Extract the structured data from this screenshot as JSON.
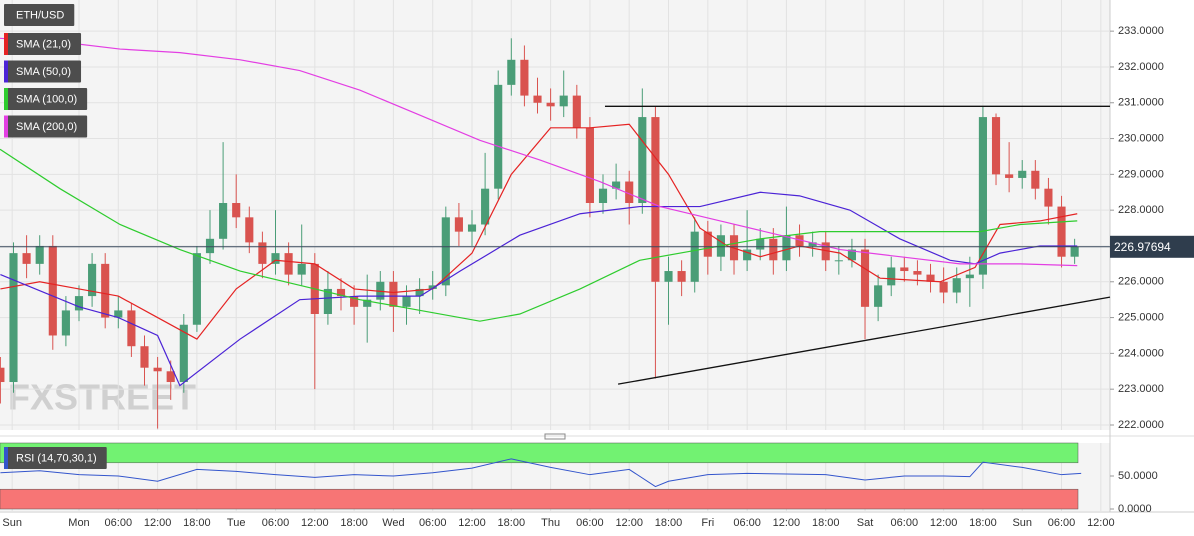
{
  "chart_data": [
    {
      "type": "candlestick",
      "title": "ETH/USD",
      "watermark": "FXSTREET",
      "up_color": "#4a9d77",
      "down_color": "#d9534f",
      "x": [
        -12,
        -10,
        -8,
        -6,
        -4,
        -2,
        0,
        2,
        4,
        6,
        8,
        10,
        12,
        14,
        16,
        18,
        20,
        22,
        24,
        26,
        28,
        30,
        32,
        34,
        36,
        38,
        40,
        42,
        44,
        46,
        48,
        50,
        52,
        54,
        56,
        58,
        60,
        62,
        64,
        66,
        68,
        70,
        72,
        74,
        76,
        78,
        80,
        82,
        84,
        86,
        88,
        90,
        92,
        94,
        96,
        98,
        100,
        102,
        104,
        106,
        108,
        110,
        112,
        114,
        116,
        118,
        120,
        122,
        124,
        126,
        128,
        130,
        132,
        134,
        136,
        138,
        140,
        142,
        144,
        146,
        148,
        150,
        152
      ],
      "open": [
        223.6,
        223.2,
        226.8,
        226.5,
        227,
        224.5,
        225.2,
        225.6,
        226.5,
        225,
        225.2,
        224.2,
        223.6,
        223.5,
        223.2,
        224.8,
        226.8,
        227.2,
        228.2,
        227.8,
        227.1,
        226.5,
        226.8,
        226.2,
        226.5,
        225.1,
        225.8,
        225.6,
        225.3,
        225.5,
        226,
        225.3,
        225.6,
        225.8,
        225.9,
        227.8,
        227.4,
        227.6,
        228.6,
        231.5,
        232.2,
        231.2,
        231,
        230.9,
        231.2,
        230.3,
        228.2,
        228.6,
        228.8,
        228.2,
        230.6,
        226,
        226.3,
        226,
        227.4,
        226.7,
        227.3,
        226.6,
        226.9,
        227.2,
        226.6,
        227.3,
        227,
        227.1,
        226.6,
        226.6,
        226.9,
        225.3,
        225.9,
        226.4,
        226.3,
        226.2,
        226,
        225.7,
        226.1,
        226.2,
        230.6,
        229,
        228.9,
        229.1,
        228.6,
        228.1,
        226.7
      ],
      "high": [
        223.9,
        227.1,
        227.3,
        227.3,
        227.3,
        225.6,
        225.9,
        226.8,
        226.8,
        225.6,
        225.4,
        224.5,
        223.9,
        223.8,
        225.1,
        227,
        228,
        229.9,
        229,
        228.1,
        227.4,
        228,
        227.1,
        227.6,
        226.8,
        226.3,
        226.1,
        225.9,
        226.2,
        226.3,
        226.3,
        225.9,
        226.1,
        226.3,
        228.1,
        228.2,
        228,
        229.6,
        231.9,
        232.8,
        232.6,
        231.7,
        231.4,
        231.9,
        231.5,
        230.6,
        229,
        229.3,
        229.1,
        231.4,
        230.9,
        226.7,
        226.6,
        227.8,
        227.7,
        227.6,
        227.6,
        228,
        227.5,
        227.5,
        228.1,
        227.6,
        227.4,
        227.4,
        227,
        227.2,
        227.2,
        226.2,
        226.7,
        226.7,
        226.6,
        226.5,
        226.4,
        226.4,
        226.7,
        230.9,
        230.7,
        229.9,
        229.4,
        229.4,
        228.9,
        228.4,
        227.2
      ],
      "low": [
        222.6,
        222.9,
        226.1,
        226.2,
        224.1,
        224.2,
        224.9,
        225.3,
        224.7,
        224.7,
        223.9,
        223.1,
        221.9,
        222.7,
        222.9,
        224.6,
        226.5,
        226.9,
        227.5,
        226.8,
        226.1,
        226.2,
        225.9,
        225.9,
        223,
        224.8,
        225.2,
        224.8,
        224.3,
        225.2,
        224.6,
        224.8,
        225.1,
        225.5,
        225.6,
        227,
        227,
        227.3,
        228.3,
        231.2,
        230.9,
        230.7,
        230.5,
        230.6,
        230,
        227.8,
        227.9,
        228.3,
        227.6,
        227.9,
        223.3,
        224.8,
        225.6,
        225.7,
        226.2,
        226.3,
        226.2,
        226.3,
        226.6,
        226.2,
        226.3,
        226.7,
        226.7,
        226.3,
        226.2,
        226.4,
        224.4,
        224.9,
        225.6,
        226,
        225.9,
        225.7,
        225.4,
        225.4,
        225.3,
        225.8,
        228.7,
        228.5,
        228.6,
        228.3,
        227.6,
        226.4,
        226.5
      ],
      "close": [
        223.2,
        226.8,
        226.5,
        227,
        224.5,
        225.2,
        225.6,
        226.5,
        225,
        225.2,
        224.2,
        223.6,
        223.5,
        223.2,
        224.8,
        226.8,
        227.2,
        228.2,
        227.8,
        227.1,
        226.5,
        226.8,
        226.2,
        226.5,
        225.1,
        225.8,
        225.6,
        225.3,
        225.5,
        226,
        225.3,
        225.6,
        225.8,
        225.9,
        227.8,
        227.4,
        227.6,
        228.6,
        231.5,
        232.2,
        231.2,
        231,
        230.9,
        231.2,
        230.3,
        228.2,
        228.6,
        228.8,
        228.2,
        230.6,
        226,
        226.3,
        226,
        227.4,
        226.7,
        227.3,
        226.6,
        226.9,
        227.2,
        226.6,
        227.3,
        227,
        227.1,
        226.6,
        226.6,
        226.9,
        225.3,
        225.9,
        226.4,
        226.3,
        226.2,
        226,
        225.7,
        226.1,
        226.2,
        230.6,
        229,
        228.9,
        229.1,
        228.6,
        228.1,
        226.7,
        226.98
      ],
      "series": [
        {
          "name": "SMA (21,0)",
          "color": "#e52323",
          "x": [
            -12,
            -6,
            0,
            6,
            12,
            18,
            24,
            30,
            36,
            42,
            48,
            54,
            60,
            66,
            72,
            78,
            84,
            90,
            94.8,
            99,
            104,
            110,
            116.2,
            122.3,
            131.5,
            136.8,
            140.6,
            146.7,
            152.4
          ],
          "values": [
            225.8,
            226,
            225.8,
            225.6,
            225,
            224.4,
            225.8,
            226.6,
            226.5,
            225.8,
            225.7,
            225.8,
            226.8,
            229,
            230.3,
            230.3,
            230.4,
            229,
            227.5,
            227,
            226.7,
            227,
            226.8,
            226.1,
            226,
            226.4,
            227.6,
            227.7,
            227.9
          ]
        },
        {
          "name": "SMA (50,0)",
          "color": "#4b23d6",
          "x": [
            -12,
            0,
            6,
            12,
            15.4,
            24.6,
            33.7,
            42.9,
            52.1,
            58.2,
            67.3,
            76.5,
            85.6,
            94.8,
            104,
            110,
            117.7,
            125.3,
            133,
            136.8,
            140.6,
            146.7,
            152.4
          ],
          "values": [
            226.2,
            225.3,
            225,
            224.5,
            223.1,
            224.4,
            225.5,
            225.6,
            225.6,
            226.3,
            227.3,
            227.9,
            228.1,
            228.1,
            228.5,
            228.4,
            228,
            227.2,
            226.6,
            226.5,
            226.8,
            227,
            227
          ]
        },
        {
          "name": "SMA (100,0)",
          "color": "#2ecc2e",
          "x": [
            -12.06,
            -2.9,
            6.26,
            15.4,
            24.6,
            33.7,
            42.9,
            52.1,
            61.2,
            67.3,
            76.5,
            85.6,
            94.8,
            104,
            113.1,
            122.3,
            131.5,
            137.6,
            143.7,
            152.4
          ],
          "values": [
            229.7,
            228.6,
            227.6,
            226.9,
            226.3,
            225.9,
            225.5,
            225.2,
            224.9,
            225.1,
            225.8,
            226.6,
            226.9,
            227.2,
            227.4,
            227.4,
            227.4,
            227.4,
            227.6,
            227.7
          ]
        },
        {
          "name": "SMA (200,0)",
          "color": "#e33ee3",
          "x": [
            -12.06,
            -2.9,
            6.26,
            15.4,
            24.6,
            33.7,
            42.9,
            52.1,
            61.2,
            70.4,
            79.5,
            88.7,
            97.9,
            107,
            116.2,
            125.3,
            134.5,
            143.7,
            152.4
          ],
          "values": [
            232.8,
            232.7,
            232.5,
            232.4,
            232.2,
            231.9,
            231.35,
            230.65,
            229.95,
            229.4,
            228.8,
            228.1,
            227.7,
            227.3,
            226.9,
            226.7,
            226.5,
            226.5,
            226.45
          ]
        }
      ],
      "trendlines": [
        {
          "color": "#111111",
          "x": [
            80.3,
            157.4
          ],
          "y": [
            230.9,
            230.9
          ]
        },
        {
          "color": "#111111",
          "x": [
            82.3,
            157.4
          ],
          "y": [
            223.14,
            225.57
          ]
        }
      ],
      "last_price": 226.97694,
      "xlim": [
        -12.06,
        157.4
      ],
      "ylim": [
        221.86,
        233.87
      ],
      "yticks": [
        {
          "value": 222,
          "label": "222.0000"
        },
        {
          "value": 223,
          "label": "223.0000"
        },
        {
          "value": 224,
          "label": "224.0000"
        },
        {
          "value": 225,
          "label": "225.0000"
        },
        {
          "value": 226,
          "label": "226.0000"
        },
        {
          "value": 227,
          "label": "227.0000"
        },
        {
          "value": 228,
          "label": "228.0000"
        },
        {
          "value": 229,
          "label": "229.0000"
        },
        {
          "value": 230,
          "label": "230.0000"
        },
        {
          "value": 231,
          "label": "231.0000"
        },
        {
          "value": 232,
          "label": "232.0000"
        },
        {
          "value": 233,
          "label": "233.0000"
        }
      ],
      "xticks": [
        {
          "value": -10.2,
          "label": "Sun"
        },
        {
          "value": 0,
          "label": "Mon"
        },
        {
          "value": 6,
          "label": "06:00"
        },
        {
          "value": 12,
          "label": "12:00"
        },
        {
          "value": 18,
          "label": "18:00"
        },
        {
          "value": 24,
          "label": "Tue"
        },
        {
          "value": 30,
          "label": "06:00"
        },
        {
          "value": 36,
          "label": "12:00"
        },
        {
          "value": 42,
          "label": "18:00"
        },
        {
          "value": 48,
          "label": "Wed"
        },
        {
          "value": 54,
          "label": "06:00"
        },
        {
          "value": 60,
          "label": "12:00"
        },
        {
          "value": 66,
          "label": "18:00"
        },
        {
          "value": 72,
          "label": "Thu"
        },
        {
          "value": 78,
          "label": "06:00"
        },
        {
          "value": 84,
          "label": "12:00"
        },
        {
          "value": 90,
          "label": "18:00"
        },
        {
          "value": 96,
          "label": "Fri"
        },
        {
          "value": 102,
          "label": "06:00"
        },
        {
          "value": 108,
          "label": "12:00"
        },
        {
          "value": 114,
          "label": "18:00"
        },
        {
          "value": 120,
          "label": "Sat"
        },
        {
          "value": 126,
          "label": "06:00"
        },
        {
          "value": 132,
          "label": "12:00"
        },
        {
          "value": 138,
          "label": "18:00"
        },
        {
          "value": 144,
          "label": "Sun"
        },
        {
          "value": 150,
          "label": "06:00"
        },
        {
          "value": 156,
          "label": "12:00"
        }
      ],
      "grid": true
    },
    {
      "type": "line",
      "series": [
        {
          "name": "RSI (14,70,30,1)",
          "color": "#3355cc",
          "x": [
            -12,
            -6,
            0,
            6,
            12,
            18,
            24,
            30,
            36,
            42,
            48,
            54,
            60,
            66,
            72,
            78,
            84,
            88,
            90,
            96,
            102,
            108,
            114,
            120,
            126,
            132,
            136,
            138,
            144,
            150,
            153
          ],
          "values": [
            55,
            58,
            52,
            50,
            42,
            60,
            57,
            52,
            48,
            52,
            50,
            55,
            62,
            76,
            63,
            52,
            60,
            34,
            42,
            52,
            54,
            53,
            52,
            44,
            50,
            50,
            49,
            71,
            63,
            52,
            54
          ]
        }
      ],
      "bands": [
        {
          "from": 70,
          "to": 100,
          "color": "#72f272"
        },
        {
          "from": 0,
          "to": 30,
          "color": "#f77575"
        }
      ],
      "ylim": [
        0,
        100
      ],
      "yticks": [
        {
          "value": 50,
          "label": "50.0000"
        },
        {
          "value": 0,
          "label": "0.0000"
        }
      ]
    }
  ]
}
